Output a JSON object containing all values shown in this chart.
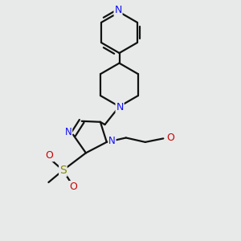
{
  "bg_color": "#e8eaea",
  "bond_color": "#111111",
  "n_color": "#1010ee",
  "o_color": "#cc0000",
  "s_color": "#bbbb00",
  "lw": 1.6,
  "dbo": 0.013,
  "figsize": [
    3.0,
    3.0
  ],
  "dpi": 100,
  "xlim": [
    0,
    1
  ],
  "ylim": [
    0,
    1
  ]
}
